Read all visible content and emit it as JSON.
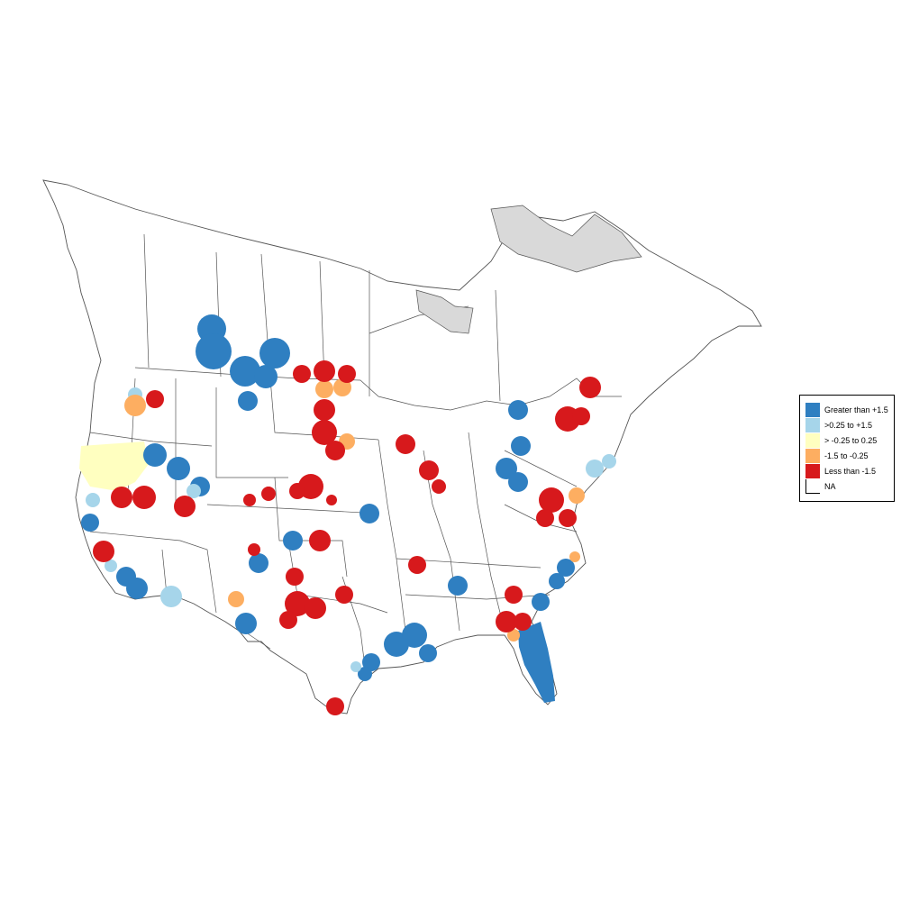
{
  "colors": {
    "gt_1_5": "#2f7fc1",
    "p025_1_5": "#a6d5ea",
    "m025_025": "#ffffc0",
    "m1_5_m025": "#fdae61",
    "lt_m1_5": "#d7191c",
    "na": "#ffffff",
    "no_data_area": "#d9d9d9",
    "border": "#555555"
  },
  "legend": {
    "items": [
      {
        "label": "Greater than +1.5",
        "color": "#2f7fc1"
      },
      {
        "label": ">0.25 to +1.5",
        "color": "#a6d5ea"
      },
      {
        "label": "> -0.25 to 0.25",
        "color": "#ffffc0"
      },
      {
        "label": "-1.5 to -0.25",
        "color": "#fdae61"
      },
      {
        "label": "Less than -1.5",
        "color": "#d7191c"
      },
      {
        "label": "NA",
        "color": "#ffffff"
      }
    ]
  }
}
